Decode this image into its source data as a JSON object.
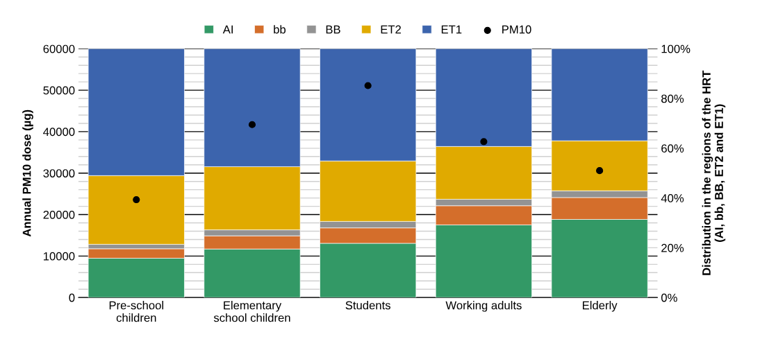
{
  "chart_data": {
    "type": "bar",
    "stacked": true,
    "categories": [
      "Pre-school\nchildren",
      "Elementary\nschool children",
      "Students",
      "Working adults",
      "Elderly"
    ],
    "series": [
      {
        "name": "AI",
        "color": "#339966",
        "axis": "y2",
        "values": [
          15.8,
          19.5,
          21.8,
          29.2,
          31.4
        ]
      },
      {
        "name": "bb",
        "color": "#d46e2b",
        "axis": "y2",
        "values": [
          3.8,
          5.3,
          6.2,
          7.7,
          8.8
        ]
      },
      {
        "name": "BB",
        "color": "#939393",
        "axis": "y2",
        "values": [
          1.8,
          2.4,
          2.6,
          2.6,
          2.7
        ]
      },
      {
        "name": "ET2",
        "color": "#e0aa00",
        "axis": "y2",
        "values": [
          27.6,
          25.4,
          24.3,
          21.2,
          20.1
        ]
      },
      {
        "name": "ET1",
        "color": "#3c64ad",
        "axis": "y2",
        "values": [
          51.0,
          47.4,
          45.1,
          39.3,
          37.0
        ]
      },
      {
        "name": "PM10",
        "color": "#000000",
        "type": "scatter",
        "marker": "circle",
        "x": [
          "Pre-school\nchildren",
          "Elementary\nschool children",
          "Students",
          "Working adults",
          "Elderly"
        ],
        "values": [
          23600,
          41700,
          51100,
          37600,
          30600
        ]
      }
    ],
    "ylabel": "Annual PM10 dose (µg)",
    "y2label": "Distribution in the regions of the HRT\n(AI, bb, BB, ET2 and ET1)",
    "ylim": [
      0,
      60000
    ],
    "yticks": [
      0,
      10000,
      20000,
      30000,
      40000,
      50000,
      60000
    ],
    "y2lim": [
      0,
      100
    ],
    "y2ticks": [
      {
        "value": 0,
        "label": "0%"
      },
      {
        "value": 20,
        "label": "20%"
      },
      {
        "value": 40,
        "label": "40%"
      },
      {
        "value": 60,
        "label": "60%"
      },
      {
        "value": 80,
        "label": "80%"
      },
      {
        "value": 100,
        "label": "100%"
      }
    ],
    "grid": "y",
    "legend": "top"
  }
}
